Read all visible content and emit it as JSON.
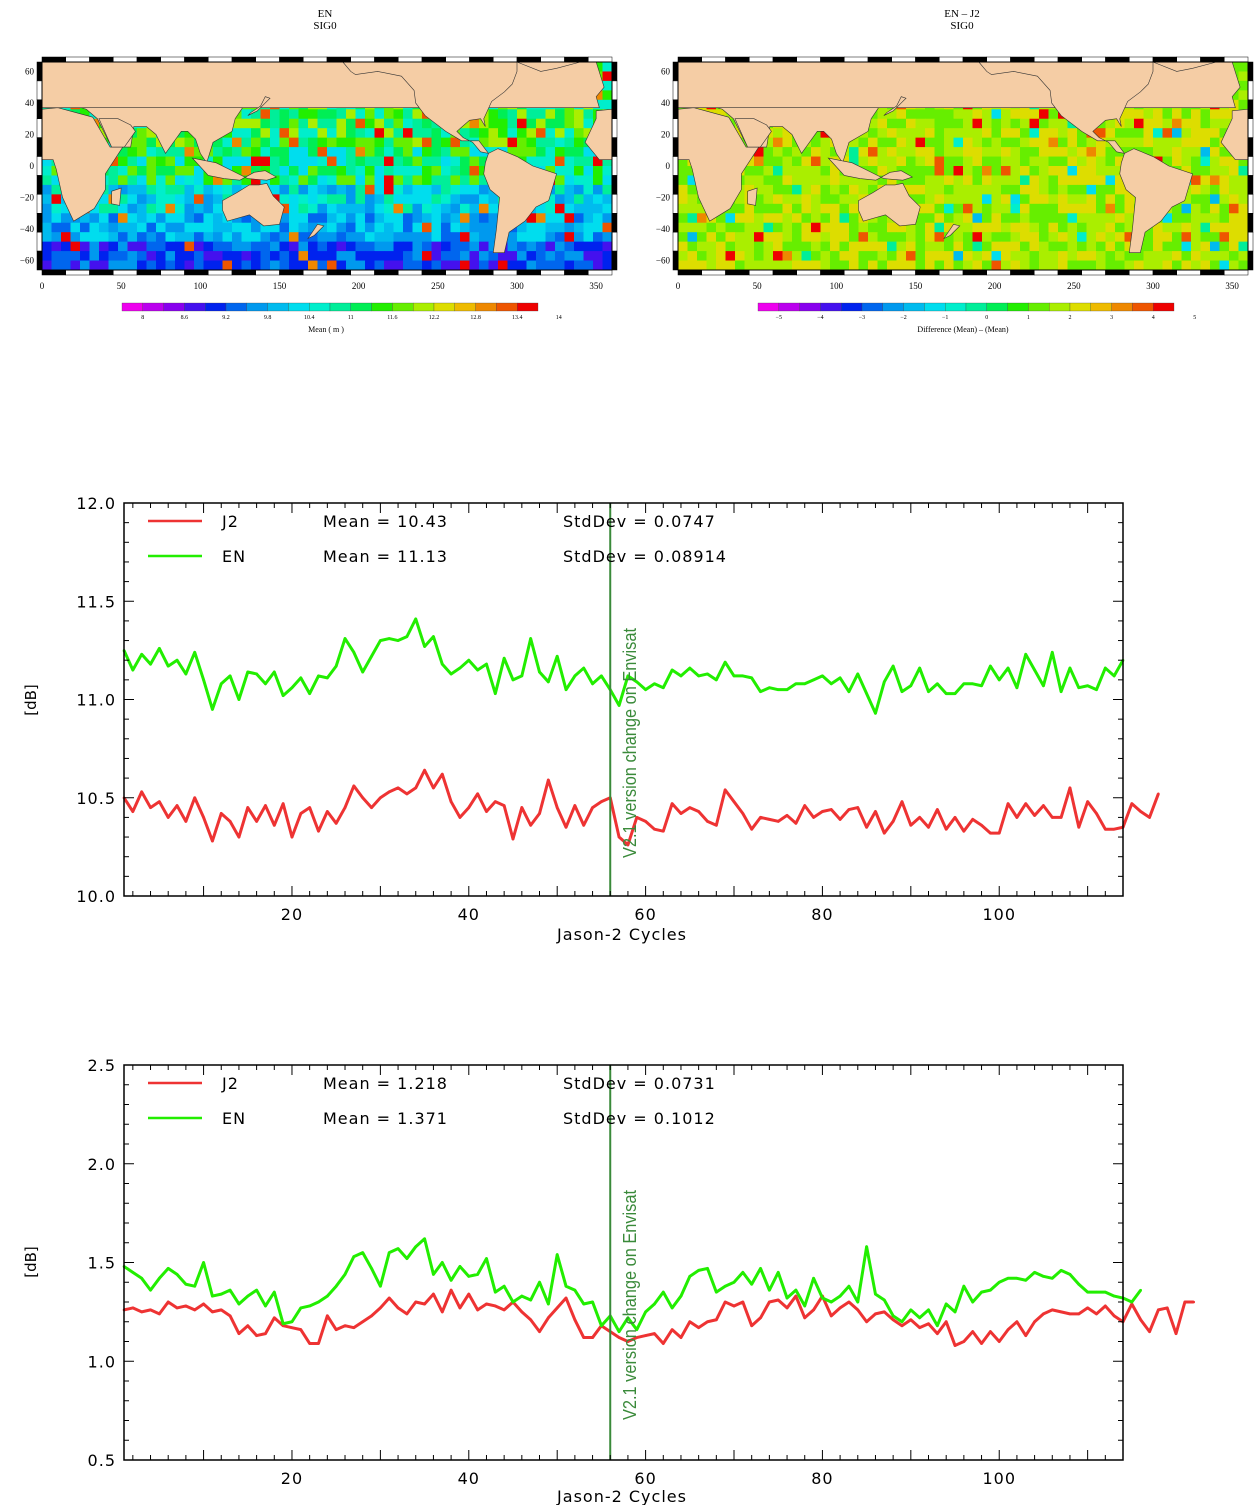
{
  "maps": [
    {
      "title": "EN",
      "subtitle": "SIG0",
      "x_ticks": [
        "0",
        "50",
        "100",
        "150",
        "200",
        "250",
        "300",
        "350"
      ],
      "y_ticks": [
        "60",
        "40",
        "20",
        "0",
        "−20",
        "−40",
        "−60"
      ],
      "colorbar_ticks": [
        "8",
        "8.6",
        "9.2",
        "9.8",
        "10.4",
        "11",
        "11.6",
        "12.2",
        "12.8",
        "13.4",
        "14"
      ],
      "colorbar_label": "Mean ( m )",
      "colorbar_colors": [
        "#ee00ee",
        "#bb00ee",
        "#8800ee",
        "#4411ee",
        "#0022ee",
        "#0066ee",
        "#0099ee",
        "#00bbee",
        "#00ddee",
        "#00eecc",
        "#00ee99",
        "#00ee55",
        "#22ee00",
        "#66ee00",
        "#aaee00",
        "#dddd00",
        "#eebb00",
        "#ee8800",
        "#ee5500",
        "#ee0000"
      ]
    },
    {
      "title": "EN – J2",
      "subtitle": "SIG0",
      "x_ticks": [
        "0",
        "50",
        "100",
        "150",
        "200",
        "250",
        "300",
        "350"
      ],
      "y_ticks": [
        "60",
        "40",
        "20",
        "0",
        "−20",
        "−40",
        "−60"
      ],
      "colorbar_ticks": [
        "−5",
        "−4",
        "−3",
        "−2",
        "−1",
        "0",
        "1",
        "2",
        "3",
        "4",
        "5"
      ],
      "colorbar_label": "Difference (Mean) – (Mean)",
      "colorbar_colors": [
        "#ee00ee",
        "#bb00ee",
        "#8800ee",
        "#4411ee",
        "#0022ee",
        "#0066ee",
        "#0099ee",
        "#00bbee",
        "#00ddee",
        "#00eecc",
        "#00ee99",
        "#00ee55",
        "#22ee00",
        "#66ee00",
        "#aaee00",
        "#dddd00",
        "#eebb00",
        "#ee8800",
        "#ee5500",
        "#ee0000"
      ]
    }
  ],
  "colors": {
    "j2": "#ee3333",
    "en": "#22ee00",
    "annotation": "#3a8a3a",
    "land": "#f5cda5",
    "ocean_mean": "#00ddee",
    "ocean_diff": "#bbee22"
  },
  "chart_data": [
    {
      "type": "line",
      "xlabel": "Jason-2 Cycles",
      "ylabel": "[dB]",
      "xlim": [
        1,
        114
      ],
      "ylim": [
        10.0,
        12.0
      ],
      "x_ticks": [
        20,
        40,
        60,
        80,
        100
      ],
      "y_ticks": [
        "10.0",
        "10.5",
        "11.0",
        "11.5",
        "12.0"
      ],
      "vline": {
        "x": 56,
        "label": "V2.1 version change on Envisat"
      },
      "grid": false,
      "legend_position": "top-left",
      "series": [
        {
          "name": "J2",
          "mean": "Mean = 10.43",
          "std": "StdDev = 0.0747",
          "values": [
            10.5,
            10.43,
            10.53,
            10.45,
            10.48,
            10.4,
            10.46,
            10.38,
            10.5,
            10.4,
            10.28,
            10.42,
            10.38,
            10.3,
            10.45,
            10.38,
            10.46,
            10.36,
            10.47,
            10.3,
            10.42,
            10.45,
            10.33,
            10.43,
            10.37,
            10.45,
            10.56,
            10.5,
            10.45,
            10.5,
            10.53,
            10.55,
            10.52,
            10.55,
            10.64,
            10.55,
            10.62,
            10.48,
            10.4,
            10.45,
            10.52,
            10.43,
            10.48,
            10.46,
            10.29,
            10.45,
            10.36,
            10.42,
            10.59,
            10.45,
            10.35,
            10.46,
            10.36,
            10.45,
            10.48,
            10.5,
            10.3,
            10.26,
            10.4,
            10.38,
            10.34,
            10.33,
            10.47,
            10.42,
            10.45,
            10.43,
            10.38,
            10.36,
            10.54,
            10.48,
            10.42,
            10.34,
            10.4,
            10.39,
            10.38,
            10.41,
            10.37,
            10.46,
            10.4,
            10.43,
            10.44,
            10.39,
            10.44,
            10.45,
            10.35,
            10.43,
            10.32,
            10.38,
            10.48,
            10.36,
            10.4,
            10.35,
            10.44,
            10.34,
            10.4,
            10.33,
            10.39,
            10.36,
            10.32,
            10.32,
            10.47,
            10.4,
            10.47,
            10.41,
            10.46,
            10.4,
            10.4,
            10.55,
            10.35,
            10.48,
            10.42,
            10.34,
            10.34,
            10.35,
            10.47,
            10.43,
            10.4,
            10.52
          ]
        },
        {
          "name": "EN",
          "mean": "Mean = 11.13",
          "std": "StdDev = 0.08914",
          "values": [
            11.25,
            11.15,
            11.23,
            11.18,
            11.26,
            11.17,
            11.2,
            11.13,
            11.24,
            11.1,
            10.95,
            11.08,
            11.12,
            11.0,
            11.14,
            11.13,
            11.08,
            11.14,
            11.02,
            11.06,
            11.11,
            11.03,
            11.12,
            11.11,
            11.17,
            11.31,
            11.24,
            11.14,
            11.22,
            11.3,
            11.31,
            11.3,
            11.32,
            11.41,
            11.27,
            11.32,
            11.18,
            11.13,
            11.16,
            11.2,
            11.15,
            11.18,
            11.03,
            11.21,
            11.1,
            11.12,
            11.31,
            11.14,
            11.09,
            11.22,
            11.05,
            11.12,
            11.16,
            11.08,
            11.12,
            11.05,
            10.97,
            11.12,
            11.09,
            11.05,
            11.08,
            11.06,
            11.15,
            11.12,
            11.16,
            11.12,
            11.13,
            11.1,
            11.19,
            11.12,
            11.12,
            11.11,
            11.04,
            11.06,
            11.05,
            11.05,
            11.08,
            11.08,
            11.1,
            11.12,
            11.08,
            11.11,
            11.04,
            11.13,
            11.03,
            10.93,
            11.09,
            11.17,
            11.04,
            11.07,
            11.16,
            11.04,
            11.08,
            11.03,
            11.03,
            11.08,
            11.08,
            11.07,
            11.17,
            11.1,
            11.16,
            11.06,
            11.23,
            11.15,
            11.07,
            11.24,
            11.04,
            11.16,
            11.06,
            11.07,
            11.05,
            11.16,
            11.12,
            11.2
          ]
        }
      ]
    },
    {
      "type": "line",
      "xlabel": "Jason-2 Cycles",
      "ylabel": "[dB]",
      "xlim": [
        1,
        114
      ],
      "ylim": [
        0.5,
        2.5
      ],
      "x_ticks": [
        20,
        40,
        60,
        80,
        100
      ],
      "y_ticks": [
        "0.5",
        "1.0",
        "1.5",
        "2.0",
        "2.5"
      ],
      "vline": {
        "x": 56,
        "label": "V2.1 version change on Envisat"
      },
      "grid": false,
      "legend_position": "top-left",
      "series": [
        {
          "name": "J2",
          "mean": "Mean = 1.218",
          "std": "StdDev = 0.0731",
          "values": [
            1.26,
            1.27,
            1.25,
            1.26,
            1.24,
            1.3,
            1.27,
            1.28,
            1.26,
            1.29,
            1.25,
            1.26,
            1.23,
            1.14,
            1.18,
            1.13,
            1.14,
            1.22,
            1.18,
            1.17,
            1.16,
            1.09,
            1.09,
            1.23,
            1.16,
            1.18,
            1.17,
            1.2,
            1.23,
            1.27,
            1.32,
            1.27,
            1.24,
            1.3,
            1.29,
            1.34,
            1.25,
            1.36,
            1.27,
            1.34,
            1.26,
            1.29,
            1.28,
            1.26,
            1.3,
            1.25,
            1.21,
            1.15,
            1.22,
            1.27,
            1.32,
            1.21,
            1.12,
            1.12,
            1.18,
            1.15,
            1.12,
            1.1,
            1.12,
            1.13,
            1.14,
            1.09,
            1.16,
            1.12,
            1.2,
            1.17,
            1.2,
            1.21,
            1.3,
            1.28,
            1.3,
            1.18,
            1.22,
            1.3,
            1.31,
            1.27,
            1.33,
            1.22,
            1.26,
            1.33,
            1.23,
            1.27,
            1.3,
            1.26,
            1.2,
            1.24,
            1.25,
            1.21,
            1.18,
            1.21,
            1.17,
            1.19,
            1.14,
            1.2,
            1.08,
            1.1,
            1.15,
            1.09,
            1.15,
            1.1,
            1.16,
            1.2,
            1.13,
            1.2,
            1.24,
            1.26,
            1.25,
            1.24,
            1.24,
            1.27,
            1.24,
            1.28,
            1.23,
            1.2,
            1.29,
            1.21,
            1.15,
            1.26,
            1.27,
            1.14,
            1.3,
            1.3
          ]
        },
        {
          "name": "EN",
          "mean": "Mean = 1.371",
          "std": "StdDev = 0.1012",
          "values": [
            1.48,
            1.45,
            1.42,
            1.36,
            1.42,
            1.47,
            1.44,
            1.39,
            1.38,
            1.5,
            1.33,
            1.34,
            1.36,
            1.29,
            1.33,
            1.36,
            1.28,
            1.35,
            1.19,
            1.2,
            1.27,
            1.28,
            1.3,
            1.33,
            1.38,
            1.44,
            1.53,
            1.55,
            1.47,
            1.38,
            1.55,
            1.57,
            1.52,
            1.58,
            1.62,
            1.44,
            1.5,
            1.41,
            1.48,
            1.43,
            1.44,
            1.52,
            1.35,
            1.38,
            1.3,
            1.33,
            1.31,
            1.4,
            1.29,
            1.54,
            1.38,
            1.36,
            1.29,
            1.3,
            1.18,
            1.23,
            1.15,
            1.22,
            1.16,
            1.25,
            1.29,
            1.35,
            1.27,
            1.33,
            1.43,
            1.46,
            1.47,
            1.35,
            1.38,
            1.4,
            1.45,
            1.39,
            1.47,
            1.36,
            1.45,
            1.32,
            1.36,
            1.28,
            1.42,
            1.32,
            1.3,
            1.33,
            1.38,
            1.3,
            1.58,
            1.34,
            1.31,
            1.23,
            1.2,
            1.26,
            1.22,
            1.26,
            1.18,
            1.29,
            1.25,
            1.38,
            1.3,
            1.35,
            1.36,
            1.4,
            1.42,
            1.42,
            1.41,
            1.45,
            1.43,
            1.42,
            1.46,
            1.44,
            1.39,
            1.35,
            1.35,
            1.35,
            1.33,
            1.32,
            1.3,
            1.36
          ]
        }
      ]
    }
  ]
}
